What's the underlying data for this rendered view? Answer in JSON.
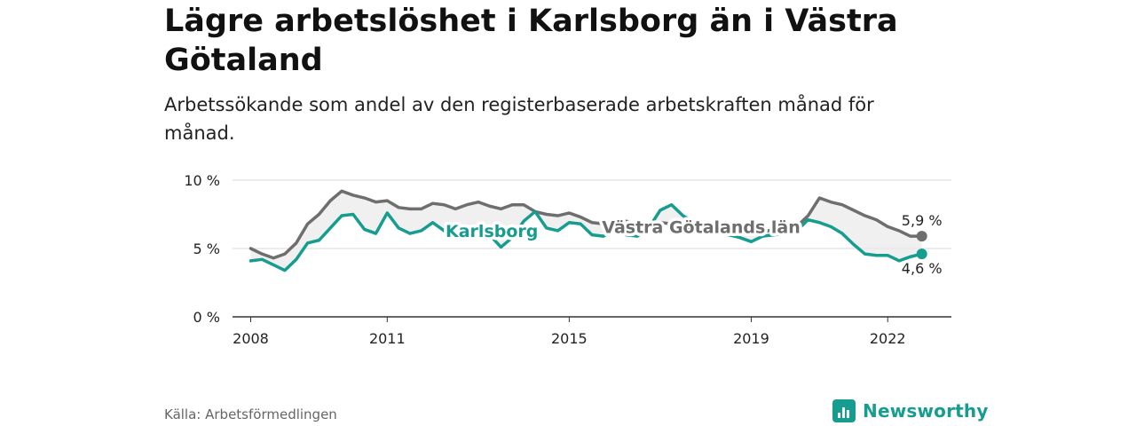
{
  "title": "Lägre arbetslöshet i Karlsborg än i Västra Götaland",
  "subtitle": "Arbetssökande som andel av den registerbaserade arbetskraften månad för månad.",
  "source": "Källa: Arbetsförmedlingen",
  "brand": "Newsworthy",
  "chart_data": {
    "type": "line",
    "x_ticks": [
      "2008",
      "2011",
      "2015",
      "2019",
      "2022"
    ],
    "y_ticks": [
      "0 %",
      "5 %",
      "10 %"
    ],
    "ylim": [
      0,
      10
    ],
    "xlim": [
      "2008-01",
      "2023-01"
    ],
    "grid": true,
    "colors": {
      "vastra": "#6e6e6e",
      "karlsborg": "#169d8f",
      "band": "#e9e9e9"
    },
    "series": [
      {
        "name": "Västra Götalands län",
        "key": "vastra",
        "end_label": "5,9 %",
        "x": [
          "2008-01",
          "2008-04",
          "2008-07",
          "2008-10",
          "2009-01",
          "2009-04",
          "2009-07",
          "2009-10",
          "2010-01",
          "2010-04",
          "2010-07",
          "2010-10",
          "2011-01",
          "2011-04",
          "2011-07",
          "2011-10",
          "2012-01",
          "2012-04",
          "2012-07",
          "2012-10",
          "2013-01",
          "2013-04",
          "2013-07",
          "2013-10",
          "2014-01",
          "2014-04",
          "2014-07",
          "2014-10",
          "2015-01",
          "2015-04",
          "2015-07",
          "2015-10",
          "2016-01",
          "2016-04",
          "2016-07",
          "2016-10",
          "2017-01",
          "2017-04",
          "2017-07",
          "2017-10",
          "2018-01",
          "2018-04",
          "2018-07",
          "2018-10",
          "2019-01",
          "2019-04",
          "2019-07",
          "2019-10",
          "2020-01",
          "2020-04",
          "2020-07",
          "2020-10",
          "2021-01",
          "2021-04",
          "2021-07",
          "2021-10",
          "2022-01",
          "2022-04",
          "2022-07",
          "2022-10"
        ],
        "values": [
          5.0,
          4.6,
          4.3,
          4.6,
          5.4,
          6.8,
          7.5,
          8.5,
          9.2,
          8.9,
          8.7,
          8.4,
          8.5,
          8.0,
          7.9,
          7.9,
          8.3,
          8.2,
          7.9,
          8.2,
          8.4,
          8.1,
          7.9,
          8.2,
          8.2,
          7.7,
          7.5,
          7.4,
          7.6,
          7.3,
          6.9,
          6.8,
          7.1,
          7.0,
          6.8,
          6.8,
          6.9,
          6.8,
          6.6,
          6.5,
          6.5,
          6.3,
          6.2,
          6.3,
          6.2,
          6.2,
          6.4,
          6.5,
          6.6,
          7.4,
          8.7,
          8.4,
          8.2,
          7.8,
          7.4,
          7.1,
          6.6,
          6.3,
          5.9,
          5.9
        ]
      },
      {
        "name": "Karlsborg",
        "key": "karlsborg",
        "end_label": "4,6 %",
        "x": [
          "2008-01",
          "2008-04",
          "2008-07",
          "2008-10",
          "2009-01",
          "2009-04",
          "2009-07",
          "2009-10",
          "2010-01",
          "2010-04",
          "2010-07",
          "2010-10",
          "2011-01",
          "2011-04",
          "2011-07",
          "2011-10",
          "2012-01",
          "2012-04",
          "2012-07",
          "2012-10",
          "2013-01",
          "2013-04",
          "2013-07",
          "2013-10",
          "2014-01",
          "2014-04",
          "2014-07",
          "2014-10",
          "2015-01",
          "2015-04",
          "2015-07",
          "2015-10",
          "2016-01",
          "2016-04",
          "2016-07",
          "2016-10",
          "2017-01",
          "2017-04",
          "2017-07",
          "2017-10",
          "2018-01",
          "2018-04",
          "2018-07",
          "2018-10",
          "2019-01",
          "2019-04",
          "2019-07",
          "2019-10",
          "2020-01",
          "2020-04",
          "2020-07",
          "2020-10",
          "2021-01",
          "2021-04",
          "2021-07",
          "2021-10",
          "2022-01",
          "2022-04",
          "2022-07",
          "2022-10"
        ],
        "values": [
          4.1,
          4.2,
          3.8,
          3.4,
          4.2,
          5.4,
          5.6,
          6.5,
          7.4,
          7.5,
          6.4,
          6.1,
          7.6,
          6.5,
          6.1,
          6.3,
          6.9,
          6.3,
          5.9,
          6.5,
          6.4,
          6.0,
          5.1,
          5.8,
          7.0,
          7.7,
          6.5,
          6.3,
          6.9,
          6.8,
          6.0,
          5.9,
          6.4,
          6.0,
          5.9,
          6.5,
          7.8,
          8.2,
          7.4,
          6.9,
          6.4,
          6.3,
          6.0,
          5.8,
          5.5,
          5.9,
          6.0,
          6.1,
          6.3,
          7.1,
          6.9,
          6.6,
          6.1,
          5.3,
          4.6,
          4.5,
          4.5,
          4.1,
          4.4,
          4.6
        ]
      }
    ]
  }
}
